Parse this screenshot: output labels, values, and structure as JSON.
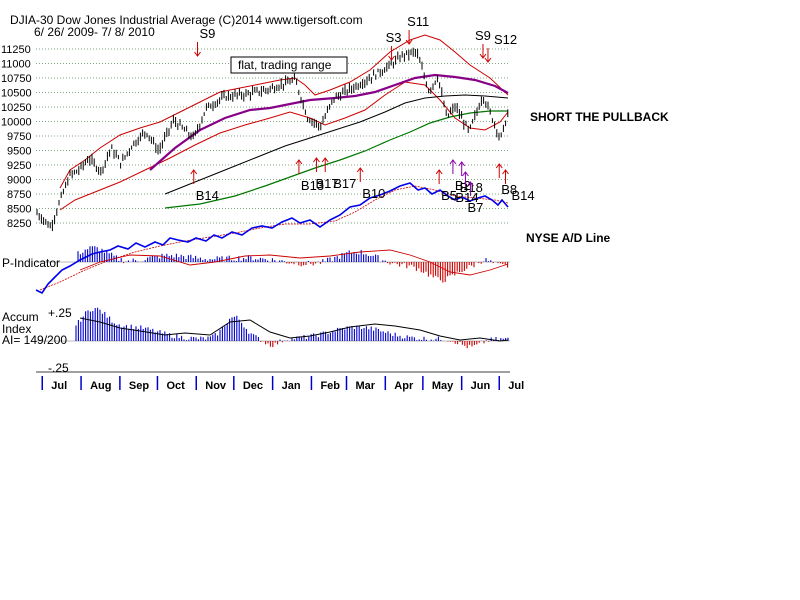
{
  "header": {
    "title": "DJIA-30  Dow Jones Industrial Average   (C)2014 www.tigersoft.com",
    "date_range": "6/ 26/ 2009-  7/ 8/ 2010"
  },
  "annotations": {
    "box_note": "flat, trading range",
    "short_note": "SHORT THE PULLBACK",
    "ad_line_label": "NYSE A/D Line",
    "p_indicator_label": "P-Indicator",
    "accum_label_1": "Accum",
    "accum_label_2": "Index",
    "accum_value": "AI= 149/200",
    "accum_top_tick": "+.25",
    "accum_bottom_tick": "-.25"
  },
  "colors": {
    "price": "#000000",
    "upper_band": "#cc0000",
    "lower_band": "#cc0000",
    "ma_purple": "#880088",
    "ma_green": "#007700",
    "ma_black": "#000000",
    "ad_line": "#0000ee",
    "ad_ma": "#cc0000",
    "pos_bars": "#0000cc",
    "neg_bars": "#cc0000",
    "buy_arrow": "#cc0000",
    "sell_arrow": "#cc0000",
    "purple_arrow": "#8800aa"
  },
  "chart_data": {
    "type": "line",
    "title": "DJIA-30  Dow Jones Industrial Average",
    "ylim": [
      8250,
      11250
    ],
    "yticks": [
      "11250",
      "11000",
      "10750",
      "10500",
      "10250",
      "10000",
      "9750",
      "9500",
      "9250",
      "9000",
      "8750",
      "8500",
      "8250"
    ],
    "month_labels": [
      "Jul",
      "Aug",
      "Sep",
      "Oct",
      "Nov",
      "Dec",
      "Jan",
      "Feb",
      "Mar",
      "Apr",
      "May",
      "Jun",
      "Jul"
    ],
    "price_series": [
      {
        "date": "2009-06-26",
        "close": 8440
      },
      {
        "date": "2009-07-08",
        "close": 8180
      },
      {
        "date": "2009-07-15",
        "close": 8620
      },
      {
        "date": "2009-07-23",
        "close": 9070
      },
      {
        "date": "2009-07-31",
        "close": 9170
      },
      {
        "date": "2009-08-07",
        "close": 9370
      },
      {
        "date": "2009-08-17",
        "close": 9140
      },
      {
        "date": "2009-08-25",
        "close": 9540
      },
      {
        "date": "2009-09-02",
        "close": 9280
      },
      {
        "date": "2009-09-11",
        "close": 9600
      },
      {
        "date": "2009-09-22",
        "close": 9830
      },
      {
        "date": "2009-10-02",
        "close": 9490
      },
      {
        "date": "2009-10-14",
        "close": 10020
      },
      {
        "date": "2009-10-30",
        "close": 9710
      },
      {
        "date": "2009-11-09",
        "close": 10230
      },
      {
        "date": "2009-11-24",
        "close": 10430
      },
      {
        "date": "2009-12-11",
        "close": 10470
      },
      {
        "date": "2009-12-28",
        "close": 10550
      },
      {
        "date": "2010-01-11",
        "close": 10660
      },
      {
        "date": "2010-01-19",
        "close": 10720
      },
      {
        "date": "2010-01-29",
        "close": 10070
      },
      {
        "date": "2010-02-08",
        "close": 9910
      },
      {
        "date": "2010-02-19",
        "close": 10400
      },
      {
        "date": "2010-03-05",
        "close": 10570
      },
      {
        "date": "2010-03-19",
        "close": 10740
      },
      {
        "date": "2010-04-05",
        "close": 10970
      },
      {
        "date": "2010-04-15",
        "close": 11140
      },
      {
        "date": "2010-04-26",
        "close": 11200
      },
      {
        "date": "2010-05-06",
        "close": 10520
      },
      {
        "date": "2010-05-13",
        "close": 10780
      },
      {
        "date": "2010-05-20",
        "close": 10070
      },
      {
        "date": "2010-05-27",
        "close": 10260
      },
      {
        "date": "2010-06-07",
        "close": 9820
      },
      {
        "date": "2010-06-18",
        "close": 10450
      },
      {
        "date": "2010-06-29",
        "close": 9870
      },
      {
        "date": "2010-07-02",
        "close": 9690
      },
      {
        "date": "2010-07-08",
        "close": 10140
      }
    ],
    "signals": [
      {
        "label": "S9",
        "kind": "sell",
        "date": "2009-11-02"
      },
      {
        "label": "B14",
        "kind": "buy",
        "date": "2009-10-30"
      },
      {
        "label": "B13",
        "kind": "buy",
        "date": "2010-01-22"
      },
      {
        "label": "B17",
        "kind": "buy",
        "date": "2010-02-05"
      },
      {
        "label": "B17",
        "kind": "buy",
        "date": "2010-02-12"
      },
      {
        "label": "B10",
        "kind": "buy",
        "date": "2010-03-12"
      },
      {
        "label": "S3",
        "kind": "sell",
        "date": "2010-04-06"
      },
      {
        "label": "S11",
        "kind": "sell",
        "date": "2010-04-20"
      },
      {
        "label": "B5",
        "kind": "buy",
        "date": "2010-05-14"
      },
      {
        "label": "B2",
        "kind": "buy",
        "date": "2010-05-25"
      },
      {
        "label": "B18",
        "kind": "buy",
        "date": "2010-06-01"
      },
      {
        "label": "B14",
        "kind": "buy",
        "date": "2010-06-04"
      },
      {
        "label": "B7",
        "kind": "buy",
        "date": "2010-06-08"
      },
      {
        "label": "S9",
        "kind": "sell",
        "date": "2010-06-18"
      },
      {
        "label": "S12",
        "kind": "sell",
        "date": "2010-06-22"
      },
      {
        "label": "B8",
        "kind": "buy",
        "date": "2010-07-01"
      },
      {
        "label": "B14",
        "kind": "buy",
        "date": "2010-07-06"
      }
    ],
    "grid": true
  }
}
